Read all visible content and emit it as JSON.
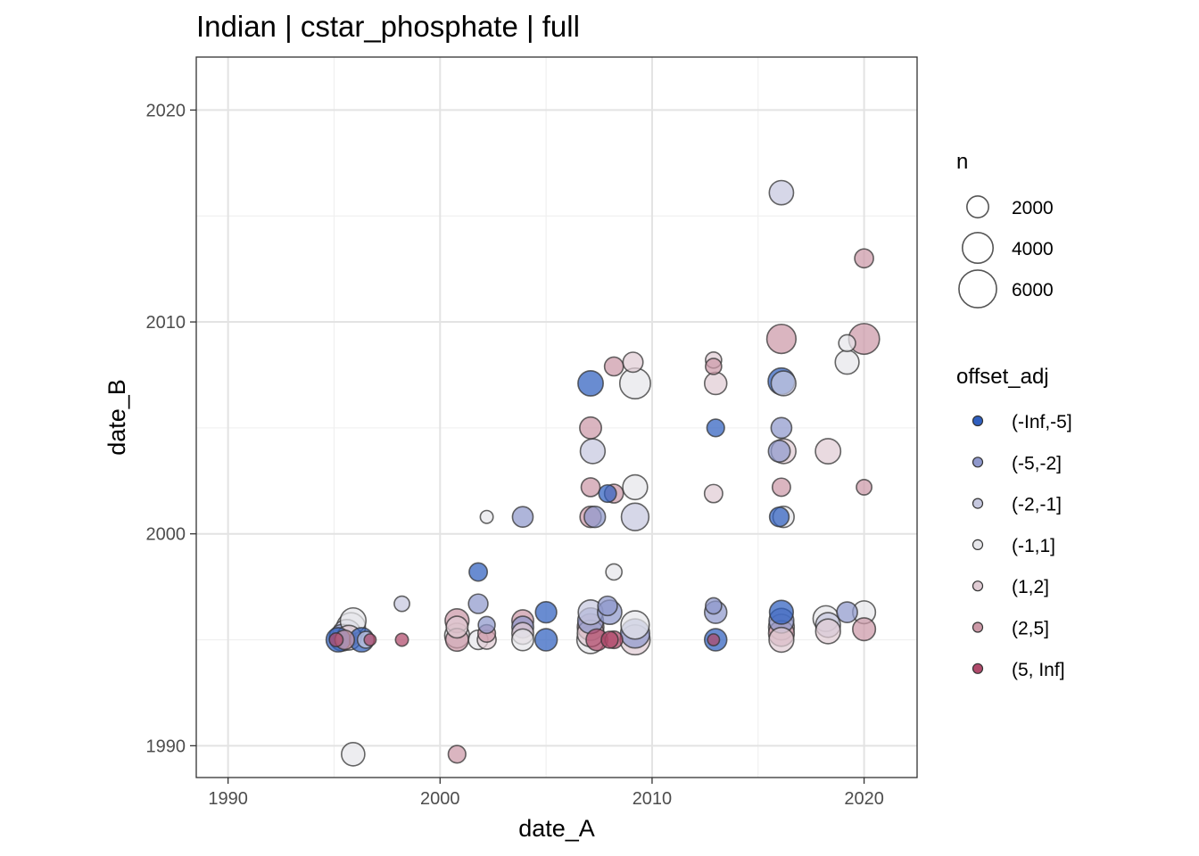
{
  "chart_data": {
    "type": "scatter",
    "title": "Indian | cstar_phosphate | full",
    "xlabel": "date_A",
    "ylabel": "date_B",
    "xlim": [
      1988.5,
      2022.5
    ],
    "ylim": [
      1988.5,
      2022.5
    ],
    "x_ticks": [
      1990,
      2000,
      2010,
      2020
    ],
    "y_ticks": [
      1990,
      2000,
      2010,
      2020
    ],
    "grid": true,
    "legend_position": "right",
    "size_legend": {
      "title": "n",
      "entries": [
        {
          "label": "2000",
          "n": 2000
        },
        {
          "label": "4000",
          "n": 4000
        },
        {
          "label": "6000",
          "n": 6000
        }
      ]
    },
    "color_legend": {
      "title": "offset_adj",
      "entries": [
        {
          "label": "(-Inf,-5]",
          "color": "#2f5fbf"
        },
        {
          "label": "(-5,-2]",
          "color": "#8f98cc"
        },
        {
          "label": "(-2,-1]",
          "color": "#c6c8df"
        },
        {
          "label": "(-1,1]",
          "color": "#e6e6ea"
        },
        {
          "label": "(1,2]",
          "color": "#e0ccd4"
        },
        {
          "label": "(2,5]",
          "color": "#cc99a7"
        },
        {
          "label": "(5, Inf]",
          "color": "#b04a6b"
        }
      ]
    },
    "points": [
      {
        "x": 1995.2,
        "y": 1995.0,
        "n": 2500,
        "group": "(-Inf,-5]"
      },
      {
        "x": 1995.4,
        "y": 1995.1,
        "n": 3000,
        "group": "(-5,-2]"
      },
      {
        "x": 1995.6,
        "y": 1995.3,
        "n": 3300,
        "group": "(-2,-1]"
      },
      {
        "x": 1995.8,
        "y": 1995.6,
        "n": 3500,
        "group": "(-1,1]"
      },
      {
        "x": 1995.7,
        "y": 1995.1,
        "n": 2600,
        "group": "(1,2]"
      },
      {
        "x": 1995.9,
        "y": 1995.9,
        "n": 2800,
        "group": "(-1,1]"
      },
      {
        "x": 1995.5,
        "y": 1995.0,
        "n": 1600,
        "group": "(2,5]"
      },
      {
        "x": 1995.1,
        "y": 1995.0,
        "n": 800,
        "group": "(5, Inf]"
      },
      {
        "x": 1996.3,
        "y": 1995.0,
        "n": 2500,
        "group": "(-Inf,-5]"
      },
      {
        "x": 1996.5,
        "y": 1995.0,
        "n": 1200,
        "group": "(-2,-1]"
      },
      {
        "x": 1996.7,
        "y": 1995.0,
        "n": 600,
        "group": "(5, Inf]"
      },
      {
        "x": 1995.9,
        "y": 1989.6,
        "n": 2300,
        "group": "(-1,1]"
      },
      {
        "x": 1998.2,
        "y": 1996.7,
        "n": 1000,
        "group": "(-2,-1]"
      },
      {
        "x": 1998.2,
        "y": 1995.0,
        "n": 700,
        "group": "(5, Inf]"
      },
      {
        "x": 2000.8,
        "y": 1995.9,
        "n": 2400,
        "group": "(2,5]"
      },
      {
        "x": 2000.8,
        "y": 1995.6,
        "n": 2000,
        "group": "(1,2]"
      },
      {
        "x": 2000.8,
        "y": 1995.2,
        "n": 2600,
        "group": "(-1,1]"
      },
      {
        "x": 2000.8,
        "y": 1995.0,
        "n": 2200,
        "group": "(2,5]"
      },
      {
        "x": 2000.8,
        "y": 1989.6,
        "n": 1300,
        "group": "(2,5]"
      },
      {
        "x": 2001.8,
        "y": 1998.2,
        "n": 1400,
        "group": "(-Inf,-5]"
      },
      {
        "x": 2001.8,
        "y": 1996.7,
        "n": 1600,
        "group": "(-5,-2]"
      },
      {
        "x": 2001.8,
        "y": 1995.0,
        "n": 1600,
        "group": "(-1,1]"
      },
      {
        "x": 2002.2,
        "y": 2000.8,
        "n": 700,
        "group": "(-1,1]"
      },
      {
        "x": 2002.2,
        "y": 1995.7,
        "n": 1200,
        "group": "(-5,-2]"
      },
      {
        "x": 2002.2,
        "y": 1995.3,
        "n": 1300,
        "group": "(2,5]"
      },
      {
        "x": 2002.2,
        "y": 1995.0,
        "n": 1500,
        "group": "(1,2]"
      },
      {
        "x": 2003.9,
        "y": 2000.8,
        "n": 1800,
        "group": "(-5,-2]"
      },
      {
        "x": 2003.9,
        "y": 1995.9,
        "n": 2000,
        "group": "(2,5]"
      },
      {
        "x": 2003.9,
        "y": 1995.6,
        "n": 2000,
        "group": "(-5,-2]"
      },
      {
        "x": 2003.9,
        "y": 1995.3,
        "n": 2000,
        "group": "(1,2]"
      },
      {
        "x": 2003.9,
        "y": 1995.0,
        "n": 2000,
        "group": "(-1,1]"
      },
      {
        "x": 2005.0,
        "y": 1996.3,
        "n": 1900,
        "group": "(-Inf,-5]"
      },
      {
        "x": 2005.0,
        "y": 1995.0,
        "n": 2100,
        "group": "(-Inf,-5]"
      },
      {
        "x": 2007.1,
        "y": 2007.1,
        "n": 2700,
        "group": "(-Inf,-5]"
      },
      {
        "x": 2007.1,
        "y": 2005.0,
        "n": 2000,
        "group": "(2,5]"
      },
      {
        "x": 2007.2,
        "y": 2003.9,
        "n": 2600,
        "group": "(-2,-1]"
      },
      {
        "x": 2007.1,
        "y": 2002.2,
        "n": 1500,
        "group": "(2,5]"
      },
      {
        "x": 2007.1,
        "y": 2000.8,
        "n": 1900,
        "group": "(2,5]"
      },
      {
        "x": 2007.3,
        "y": 2000.8,
        "n": 1900,
        "group": "(-5,-2]"
      },
      {
        "x": 2007.1,
        "y": 1996.3,
        "n": 2600,
        "group": "(-2,-1]"
      },
      {
        "x": 2007.1,
        "y": 1995.9,
        "n": 2800,
        "group": "(-5,-2]"
      },
      {
        "x": 2007.1,
        "y": 1995.6,
        "n": 3000,
        "group": "(2,5]"
      },
      {
        "x": 2007.1,
        "y": 1995.3,
        "n": 3000,
        "group": "(1,2]"
      },
      {
        "x": 2007.1,
        "y": 1995.0,
        "n": 3200,
        "group": "(-1,1]"
      },
      {
        "x": 2007.4,
        "y": 1995.0,
        "n": 2000,
        "group": "(5, Inf]"
      },
      {
        "x": 2008.2,
        "y": 2007.9,
        "n": 1500,
        "group": "(2,5]"
      },
      {
        "x": 2007.9,
        "y": 2001.9,
        "n": 1300,
        "group": "(-Inf,-5]"
      },
      {
        "x": 2008.2,
        "y": 2001.9,
        "n": 1500,
        "group": "(2,5]"
      },
      {
        "x": 2008.2,
        "y": 1998.2,
        "n": 1100,
        "group": "(-1,1]"
      },
      {
        "x": 2007.9,
        "y": 1996.6,
        "n": 1600,
        "group": "(-5,-2]"
      },
      {
        "x": 2008.0,
        "y": 1996.3,
        "n": 2500,
        "group": "(-5,-2]"
      },
      {
        "x": 2008.2,
        "y": 1995.0,
        "n": 1300,
        "group": "(5, Inf]"
      },
      {
        "x": 2008.0,
        "y": 1995.0,
        "n": 1200,
        "group": "(5, Inf]"
      },
      {
        "x": 2009.1,
        "y": 2008.1,
        "n": 1700,
        "group": "(1,2]"
      },
      {
        "x": 2009.2,
        "y": 2007.1,
        "n": 4000,
        "group": "(-1,1]"
      },
      {
        "x": 2009.2,
        "y": 2002.2,
        "n": 2600,
        "group": "(-1,1]"
      },
      {
        "x": 2009.2,
        "y": 2000.8,
        "n": 3200,
        "group": "(-2,-1]"
      },
      {
        "x": 2009.2,
        "y": 1995.7,
        "n": 3400,
        "group": "(-1,1]"
      },
      {
        "x": 2009.2,
        "y": 1995.3,
        "n": 3600,
        "group": "(-5,-2]"
      },
      {
        "x": 2009.2,
        "y": 1995.0,
        "n": 3800,
        "group": "(1,2]"
      },
      {
        "x": 2012.9,
        "y": 2008.2,
        "n": 1100,
        "group": "(1,2]"
      },
      {
        "x": 2012.9,
        "y": 2007.9,
        "n": 1100,
        "group": "(2,5]"
      },
      {
        "x": 2013.0,
        "y": 2007.1,
        "n": 2100,
        "group": "(1,2]"
      },
      {
        "x": 2013.0,
        "y": 2005.0,
        "n": 1300,
        "group": "(-Inf,-5]"
      },
      {
        "x": 2012.9,
        "y": 2001.9,
        "n": 1400,
        "group": "(1,2]"
      },
      {
        "x": 2012.9,
        "y": 1996.6,
        "n": 1100,
        "group": "(-5,-2]"
      },
      {
        "x": 2013.0,
        "y": 1996.3,
        "n": 2100,
        "group": "(-5,-2]"
      },
      {
        "x": 2013.0,
        "y": 1995.0,
        "n": 2100,
        "group": "(-Inf,-5]"
      },
      {
        "x": 2012.9,
        "y": 1995.0,
        "n": 600,
        "group": "(5, Inf]"
      },
      {
        "x": 2016.1,
        "y": 2016.1,
        "n": 2500,
        "group": "(-2,-1]"
      },
      {
        "x": 2016.1,
        "y": 2009.2,
        "n": 3600,
        "group": "(2,5]"
      },
      {
        "x": 2016.1,
        "y": 2007.2,
        "n": 3000,
        "group": "(-Inf,-5]"
      },
      {
        "x": 2016.2,
        "y": 2007.1,
        "n": 2600,
        "group": "(-2,-1]"
      },
      {
        "x": 2016.1,
        "y": 2005.0,
        "n": 1800,
        "group": "(-5,-2]"
      },
      {
        "x": 2016.0,
        "y": 2003.9,
        "n": 2000,
        "group": "(-5,-2]"
      },
      {
        "x": 2016.2,
        "y": 2003.9,
        "n": 2600,
        "group": "(1,2]"
      },
      {
        "x": 2016.1,
        "y": 2002.2,
        "n": 1400,
        "group": "(2,5]"
      },
      {
        "x": 2016.0,
        "y": 2000.8,
        "n": 1600,
        "group": "(-Inf,-5]"
      },
      {
        "x": 2016.2,
        "y": 2000.8,
        "n": 1900,
        "group": "(-1,1]"
      },
      {
        "x": 2016.1,
        "y": 1996.3,
        "n": 2400,
        "group": "(-Inf,-5]"
      },
      {
        "x": 2016.1,
        "y": 1995.9,
        "n": 2600,
        "group": "(-5,-2]"
      },
      {
        "x": 2016.1,
        "y": 1995.6,
        "n": 2800,
        "group": "(1,2]"
      },
      {
        "x": 2016.1,
        "y": 1995.3,
        "n": 2800,
        "group": "(2,5]"
      },
      {
        "x": 2016.1,
        "y": 1995.0,
        "n": 2600,
        "group": "(1,2]"
      },
      {
        "x": 2018.3,
        "y": 2003.9,
        "n": 2700,
        "group": "(1,2]"
      },
      {
        "x": 2018.2,
        "y": 1996.0,
        "n": 2800,
        "group": "(-1,1]"
      },
      {
        "x": 2018.3,
        "y": 1995.7,
        "n": 2600,
        "group": "(-2,-1]"
      },
      {
        "x": 2018.3,
        "y": 1995.4,
        "n": 2600,
        "group": "(1,2]"
      },
      {
        "x": 2019.2,
        "y": 2009.0,
        "n": 1200,
        "group": "(-1,1]"
      },
      {
        "x": 2019.2,
        "y": 2008.1,
        "n": 2400,
        "group": "(-1,1]"
      },
      {
        "x": 2019.2,
        "y": 1996.3,
        "n": 1800,
        "group": "(-5,-2]"
      },
      {
        "x": 2020.0,
        "y": 2013.0,
        "n": 1500,
        "group": "(2,5]"
      },
      {
        "x": 2020.0,
        "y": 2009.2,
        "n": 4000,
        "group": "(2,5]"
      },
      {
        "x": 2020.0,
        "y": 2002.2,
        "n": 1000,
        "group": "(2,5]"
      },
      {
        "x": 2020.0,
        "y": 1996.3,
        "n": 2200,
        "group": "(-1,1]"
      },
      {
        "x": 2020.0,
        "y": 1995.5,
        "n": 2200,
        "group": "(2,5]"
      }
    ]
  }
}
